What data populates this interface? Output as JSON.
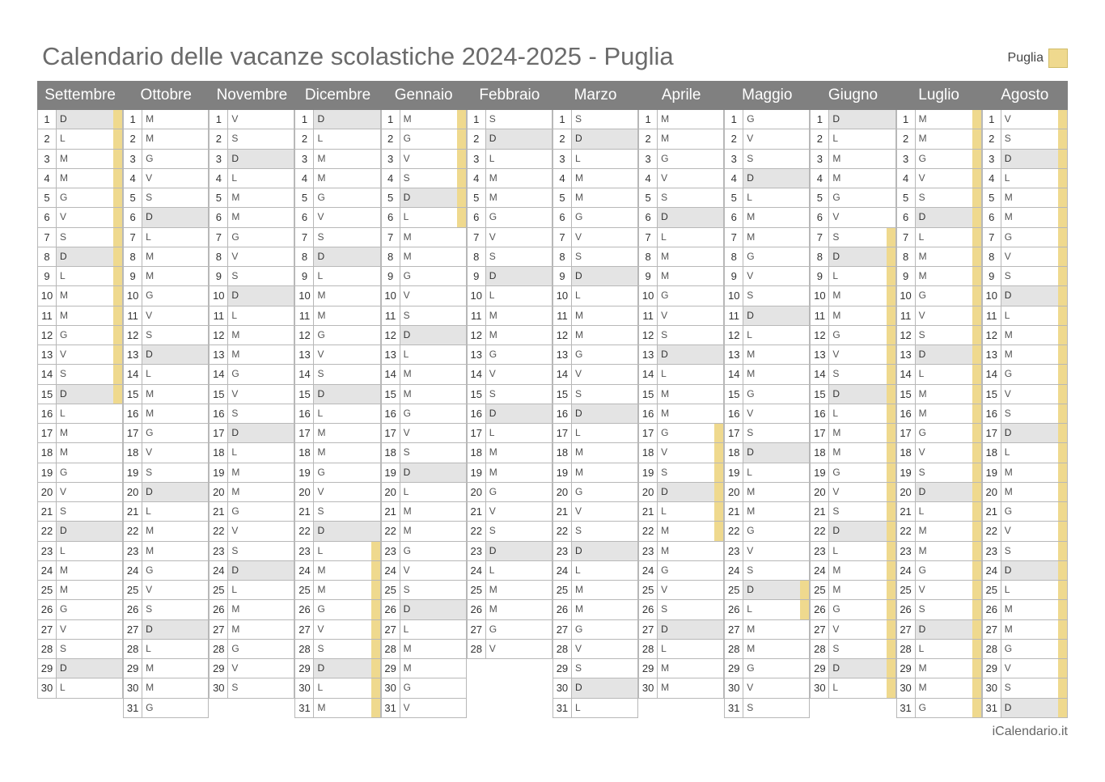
{
  "title": "Calendario delle vacanze scolastiche 2024-2025 - Puglia",
  "legend": {
    "label": "Puglia",
    "color": "#efd98e"
  },
  "colors": {
    "header_bg": "#808080",
    "sunday_bg": "#e4e4e4",
    "holiday": "#efd98e"
  },
  "footer": "iCalendario.it",
  "months": [
    {
      "name": "Settembre",
      "days": 30,
      "start_dow": 0,
      "holidays": [
        1,
        2,
        3,
        4,
        5,
        6,
        7,
        8,
        9,
        10,
        11,
        12,
        13,
        14,
        15
      ]
    },
    {
      "name": "Ottobre",
      "days": 31,
      "start_dow": 2,
      "holidays": []
    },
    {
      "name": "Novembre",
      "days": 30,
      "start_dow": 5,
      "holidays": []
    },
    {
      "name": "Dicembre",
      "days": 31,
      "start_dow": 0,
      "holidays": [
        23,
        24,
        25,
        26,
        27,
        28,
        29,
        30,
        31
      ]
    },
    {
      "name": "Gennaio",
      "days": 31,
      "start_dow": 3,
      "holidays": [
        1,
        2,
        3,
        4,
        5,
        6
      ]
    },
    {
      "name": "Febbraio",
      "days": 28,
      "start_dow": 6,
      "holidays": []
    },
    {
      "name": "Marzo",
      "days": 31,
      "start_dow": 6,
      "holidays": []
    },
    {
      "name": "Aprile",
      "days": 30,
      "start_dow": 2,
      "holidays": [
        17,
        18,
        19,
        20,
        21,
        22
      ]
    },
    {
      "name": "Maggio",
      "days": 31,
      "start_dow": 4,
      "holidays": [
        25,
        26
      ]
    },
    {
      "name": "Giugno",
      "days": 30,
      "start_dow": 0,
      "holidays": [
        7,
        8,
        9,
        10,
        11,
        12,
        13,
        14,
        15,
        16,
        17,
        18,
        19,
        20,
        21,
        22,
        23,
        24,
        25,
        26,
        27,
        28,
        29,
        30
      ]
    },
    {
      "name": "Luglio",
      "days": 31,
      "start_dow": 2,
      "holidays": [
        1,
        2,
        3,
        4,
        5,
        6,
        7,
        8,
        9,
        10,
        11,
        12,
        13,
        14,
        15,
        16,
        17,
        18,
        19,
        20,
        21,
        22,
        23,
        24,
        25,
        26,
        27,
        28,
        29,
        30,
        31
      ]
    },
    {
      "name": "Agosto",
      "days": 31,
      "start_dow": 5,
      "holidays": [
        1,
        2,
        3,
        4,
        5,
        6,
        7,
        8,
        9,
        10,
        11,
        12,
        13,
        14,
        15,
        16,
        17,
        18,
        19,
        20,
        21,
        22,
        23,
        24,
        25,
        26,
        27,
        28,
        29,
        30,
        31
      ]
    }
  ],
  "weekday_letters": [
    "D",
    "L",
    "M",
    "M",
    "G",
    "V",
    "S"
  ]
}
